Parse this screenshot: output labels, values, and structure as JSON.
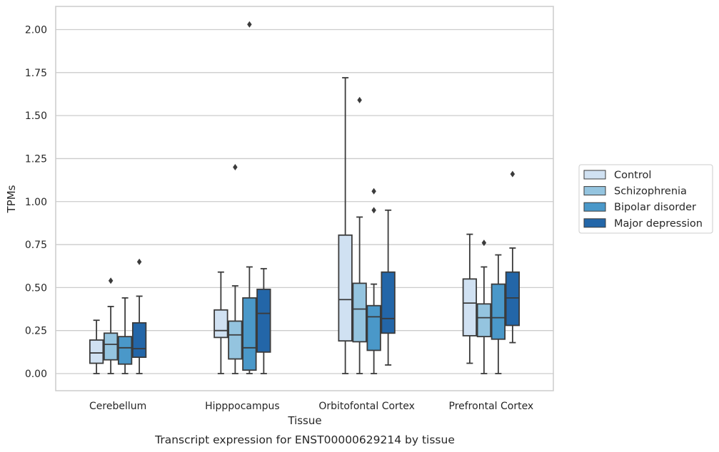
{
  "caption": "Transcript expression for ENST00000629214 by tissue",
  "chart_data": {
    "type": "box",
    "title": "",
    "xlabel": "Tissue",
    "ylabel": "TPMs",
    "ylim": [
      -0.1,
      2.14
    ],
    "yticks": [
      0.0,
      0.25,
      0.5,
      0.75,
      1.0,
      1.25,
      1.5,
      1.75,
      2.0
    ],
    "ytick_labels": [
      "0.00",
      "0.25",
      "0.50",
      "0.75",
      "1.00",
      "1.25",
      "1.50",
      "1.75",
      "2.00"
    ],
    "grid": "horizontal",
    "legend_position": "right",
    "categories": [
      "Cerebellum",
      "Hipppocampus",
      "Orbitofontal Cortex",
      "Prefrontal Cortex"
    ],
    "series": [
      {
        "name": "Control",
        "color": "#d0e1f2",
        "boxes": [
          {
            "whisker_low": 0.0,
            "q1": 0.06,
            "median": 0.12,
            "q3": 0.195,
            "whisker_high": 0.31,
            "outliers": []
          },
          {
            "whisker_low": 0.0,
            "q1": 0.21,
            "median": 0.25,
            "q3": 0.37,
            "whisker_high": 0.59,
            "outliers": []
          },
          {
            "whisker_low": 0.0,
            "q1": 0.19,
            "median": 0.43,
            "q3": 0.805,
            "whisker_high": 1.72,
            "outliers": []
          },
          {
            "whisker_low": 0.06,
            "q1": 0.22,
            "median": 0.41,
            "q3": 0.55,
            "whisker_high": 0.81,
            "outliers": []
          }
        ]
      },
      {
        "name": "Schizophrenia",
        "color": "#94c4df",
        "boxes": [
          {
            "whisker_low": 0.0,
            "q1": 0.08,
            "median": 0.17,
            "q3": 0.235,
            "whisker_high": 0.39,
            "outliers": [
              0.54
            ]
          },
          {
            "whisker_low": 0.0,
            "q1": 0.085,
            "median": 0.225,
            "q3": 0.305,
            "whisker_high": 0.51,
            "outliers": [
              1.2
            ]
          },
          {
            "whisker_low": 0.0,
            "q1": 0.185,
            "median": 0.375,
            "q3": 0.525,
            "whisker_high": 0.91,
            "outliers": [
              1.59
            ]
          },
          {
            "whisker_low": 0.0,
            "q1": 0.215,
            "median": 0.325,
            "q3": 0.405,
            "whisker_high": 0.62,
            "outliers": [
              0.76
            ]
          }
        ]
      },
      {
        "name": "Bipolar disorder",
        "color": "#4a98c9",
        "boxes": [
          {
            "whisker_low": 0.0,
            "q1": 0.055,
            "median": 0.15,
            "q3": 0.215,
            "whisker_high": 0.44,
            "outliers": []
          },
          {
            "whisker_low": 0.0,
            "q1": 0.02,
            "median": 0.15,
            "q3": 0.44,
            "whisker_high": 0.62,
            "outliers": [
              2.03
            ]
          },
          {
            "whisker_low": 0.0,
            "q1": 0.135,
            "median": 0.33,
            "q3": 0.395,
            "whisker_high": 0.52,
            "outliers": [
              1.06,
              0.95
            ]
          },
          {
            "whisker_low": 0.0,
            "q1": 0.2,
            "median": 0.325,
            "q3": 0.52,
            "whisker_high": 0.69,
            "outliers": []
          }
        ]
      },
      {
        "name": "Major depression",
        "color": "#2366a8",
        "boxes": [
          {
            "whisker_low": 0.0,
            "q1": 0.095,
            "median": 0.145,
            "q3": 0.295,
            "whisker_high": 0.45,
            "outliers": [
              0.65
            ]
          },
          {
            "whisker_low": 0.0,
            "q1": 0.125,
            "median": 0.35,
            "q3": 0.49,
            "whisker_high": 0.61,
            "outliers": []
          },
          {
            "whisker_low": 0.05,
            "q1": 0.235,
            "median": 0.32,
            "q3": 0.59,
            "whisker_high": 0.95,
            "outliers": []
          },
          {
            "whisker_low": 0.18,
            "q1": 0.28,
            "median": 0.44,
            "q3": 0.59,
            "whisker_high": 0.73,
            "outliers": [
              1.16
            ]
          }
        ]
      }
    ]
  }
}
